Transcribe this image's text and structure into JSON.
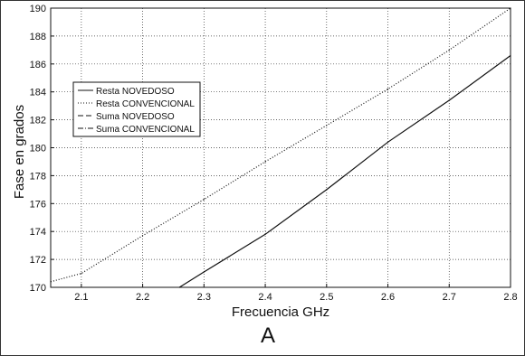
{
  "chart_data": {
    "type": "line",
    "panel_label": "A",
    "xlabel": "Frecuencia GHz",
    "ylabel": "Fase en grados",
    "xlim": [
      2.05,
      2.8
    ],
    "ylim": [
      170,
      190
    ],
    "xticks": [
      2.1,
      2.2,
      2.3,
      2.4,
      2.5,
      2.6,
      2.7,
      2.8
    ],
    "yticks": [
      170,
      172,
      174,
      176,
      178,
      180,
      182,
      184,
      186,
      188,
      190
    ],
    "xtick_labels": [
      "2.1",
      "2.2",
      "2.3",
      "2.4",
      "2.5",
      "2.6",
      "2.7",
      "2.8"
    ],
    "ytick_labels": [
      "170",
      "172",
      "174",
      "176",
      "178",
      "180",
      "182",
      "184",
      "186",
      "188",
      "190"
    ],
    "grid": true,
    "legend_position": "upper-left",
    "series": [
      {
        "name": "Resta NOVEDOSO",
        "style": "solid",
        "color": "#111111",
        "x": [
          2.26,
          2.3,
          2.4,
          2.5,
          2.6,
          2.7,
          2.8
        ],
        "y": [
          170.0,
          171.1,
          173.8,
          177.0,
          180.4,
          183.4,
          186.6
        ]
      },
      {
        "name": "Resta CONVENCIONAL",
        "style": "dotted",
        "color": "#111111",
        "x": [
          2.05,
          2.1,
          2.2,
          2.3,
          2.4,
          2.5,
          2.6,
          2.7,
          2.8
        ],
        "y": [
          170.4,
          171.0,
          173.7,
          176.3,
          179.0,
          181.6,
          184.2,
          187.0,
          190.0
        ]
      },
      {
        "name": "Suma NOVEDOSO",
        "style": "dashed",
        "color": "#111111",
        "x": [],
        "y": []
      },
      {
        "name": "Suma CONVENCIONAL",
        "style": "dashdot",
        "color": "#111111",
        "x": [],
        "y": []
      }
    ]
  }
}
